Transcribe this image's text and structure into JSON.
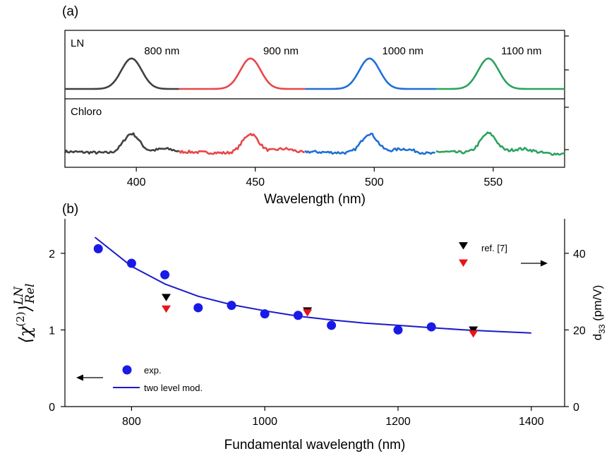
{
  "chart_data": [
    {
      "type": "line",
      "panel_label": "(a)",
      "xlabel": "Wavelength (nm)",
      "xlim": [
        370,
        580
      ],
      "xticks": [
        400,
        450,
        500,
        550
      ],
      "subplots": [
        {
          "label": "LN",
          "ylim": [
            0,
            1.25
          ],
          "peaks": [
            {
              "center": 398,
              "range": [
                370,
                418
              ],
              "color": "#404040",
              "label": "800 nm"
            },
            {
              "center": 448,
              "range": [
                418,
                471
              ],
              "color": "#e8464a",
              "label": "900 nm"
            },
            {
              "center": 498,
              "range": [
                471,
                526
              ],
              "color": "#1f6fd6",
              "label": "1000 nm"
            },
            {
              "center": 548,
              "range": [
                526,
                580
              ],
              "color": "#2ca25f",
              "label": "1100 nm"
            }
          ]
        },
        {
          "label": "Chloro",
          "ylim": [
            0,
            1.25
          ],
          "peaks": [
            {
              "center": 398,
              "range": [
                370,
                418
              ],
              "color": "#404040"
            },
            {
              "center": 448,
              "range": [
                418,
                471
              ],
              "color": "#e8464a"
            },
            {
              "center": 498,
              "range": [
                471,
                526
              ],
              "color": "#1f6fd6"
            },
            {
              "center": 548,
              "range": [
                526,
                580
              ],
              "color": "#2ca25f"
            }
          ]
        }
      ]
    },
    {
      "type": "scatter",
      "panel_label": "(b)",
      "xlabel": "Fundamental wavelength (nm)",
      "ylabel_left": "⟨χ",
      "ylabel_left_sup": "(2)",
      "ylabel_left_rangle": "⟩",
      "ylabel_left_sub": "Rel",
      "ylabel_left_supsub": "LN",
      "ylabel_right_main": "d",
      "ylabel_right_sub": "33",
      "ylabel_right_unit": " (pm/V)",
      "xlim": [
        700,
        1450
      ],
      "xticks": [
        800,
        1000,
        1200,
        1400
      ],
      "ylim_left": [
        0,
        2.45
      ],
      "yticks_left": [
        0,
        1,
        2
      ],
      "ylim_right": [
        0,
        49
      ],
      "yticks_right": [
        0,
        20,
        40
      ],
      "series": [
        {
          "name": "exp.",
          "marker": "circle",
          "color": "#1a1ae6",
          "x": [
            750,
            800,
            850,
            900,
            950,
            1000,
            1050,
            1100,
            1200,
            1250
          ],
          "y": [
            2.06,
            1.87,
            1.72,
            1.29,
            1.32,
            1.21,
            1.19,
            1.06,
            1.0,
            1.04
          ]
        },
        {
          "name": "two level mod.",
          "type": "line",
          "color": "#1a1acc",
          "x": [
            745,
            800,
            850,
            900,
            950,
            1000,
            1050,
            1100,
            1150,
            1200,
            1250,
            1300,
            1350,
            1400
          ],
          "y": [
            2.21,
            1.83,
            1.6,
            1.44,
            1.33,
            1.25,
            1.18,
            1.13,
            1.09,
            1.06,
            1.03,
            1.0,
            0.98,
            0.96
          ]
        },
        {
          "marker": "triangle-down",
          "color": "#000000",
          "axis": "right",
          "x": [
            852,
            1064,
            1313,
            1298
          ],
          "y": [
            28.5,
            25.0,
            20.0,
            42.0
          ]
        },
        {
          "marker": "triangle-down",
          "color": "#e8141a",
          "axis": "right",
          "x": [
            852,
            1064,
            1313,
            1298
          ],
          "y": [
            25.5,
            24.5,
            19.0,
            37.5
          ]
        }
      ],
      "annotation": "ref. [7]",
      "legend": {
        "placement": "bottom-left",
        "entries": [
          "exp.",
          "two level mod."
        ]
      }
    }
  ]
}
